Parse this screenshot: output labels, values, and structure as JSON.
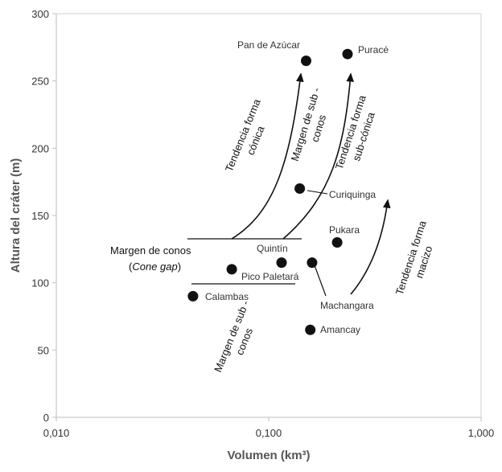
{
  "chart_data": {
    "type": "scatter",
    "x_scale": "log",
    "xlabel": "Volumen (km³)",
    "ylabel": "Altura del cráter (m)",
    "xlim": [
      0.01,
      1.0
    ],
    "ylim": [
      0,
      300
    ],
    "x_ticks": [
      "0,010",
      "0,100",
      "1,000"
    ],
    "y_ticks": [
      "0",
      "50",
      "100",
      "150",
      "200",
      "250",
      "300"
    ],
    "grid": false,
    "points": [
      {
        "name": "Pan de Azúcar",
        "x": 0.15,
        "y": 265
      },
      {
        "name": "Puracé",
        "x": 0.235,
        "y": 270
      },
      {
        "name": "Curiquinga",
        "x": 0.14,
        "y": 170
      },
      {
        "name": "Pukara",
        "x": 0.21,
        "y": 130
      },
      {
        "name": "Quintín",
        "x": 0.115,
        "y": 115
      },
      {
        "name": "Pico Paletará",
        "x": 0.067,
        "y": 110
      },
      {
        "name": "Machangara",
        "x": 0.16,
        "y": 115
      },
      {
        "name": "Calambas",
        "x": 0.044,
        "y": 90
      },
      {
        "name": "Amancay",
        "x": 0.157,
        "y": 65
      }
    ],
    "annotations": {
      "cone_gap_line1": "Margen de conos",
      "cone_gap_line2_pre": "(",
      "cone_gap_line2_italic": "Cone gap",
      "cone_gap_line2_post": ")",
      "trend_conic_1": "Tendencia forma",
      "trend_conic_2": "cónica",
      "subcone_margin_1": "Margen de sub -",
      "subcone_margin_2": "conos",
      "trend_subconic_1": "Tendencia forma",
      "trend_subconic_2": "sub-cónica",
      "trend_massive_1": "Tendencia forma",
      "trend_massive_2": "macizo",
      "subcone_margin_low_1": "Margen de sub -",
      "subcone_margin_low_2": "conos"
    }
  }
}
